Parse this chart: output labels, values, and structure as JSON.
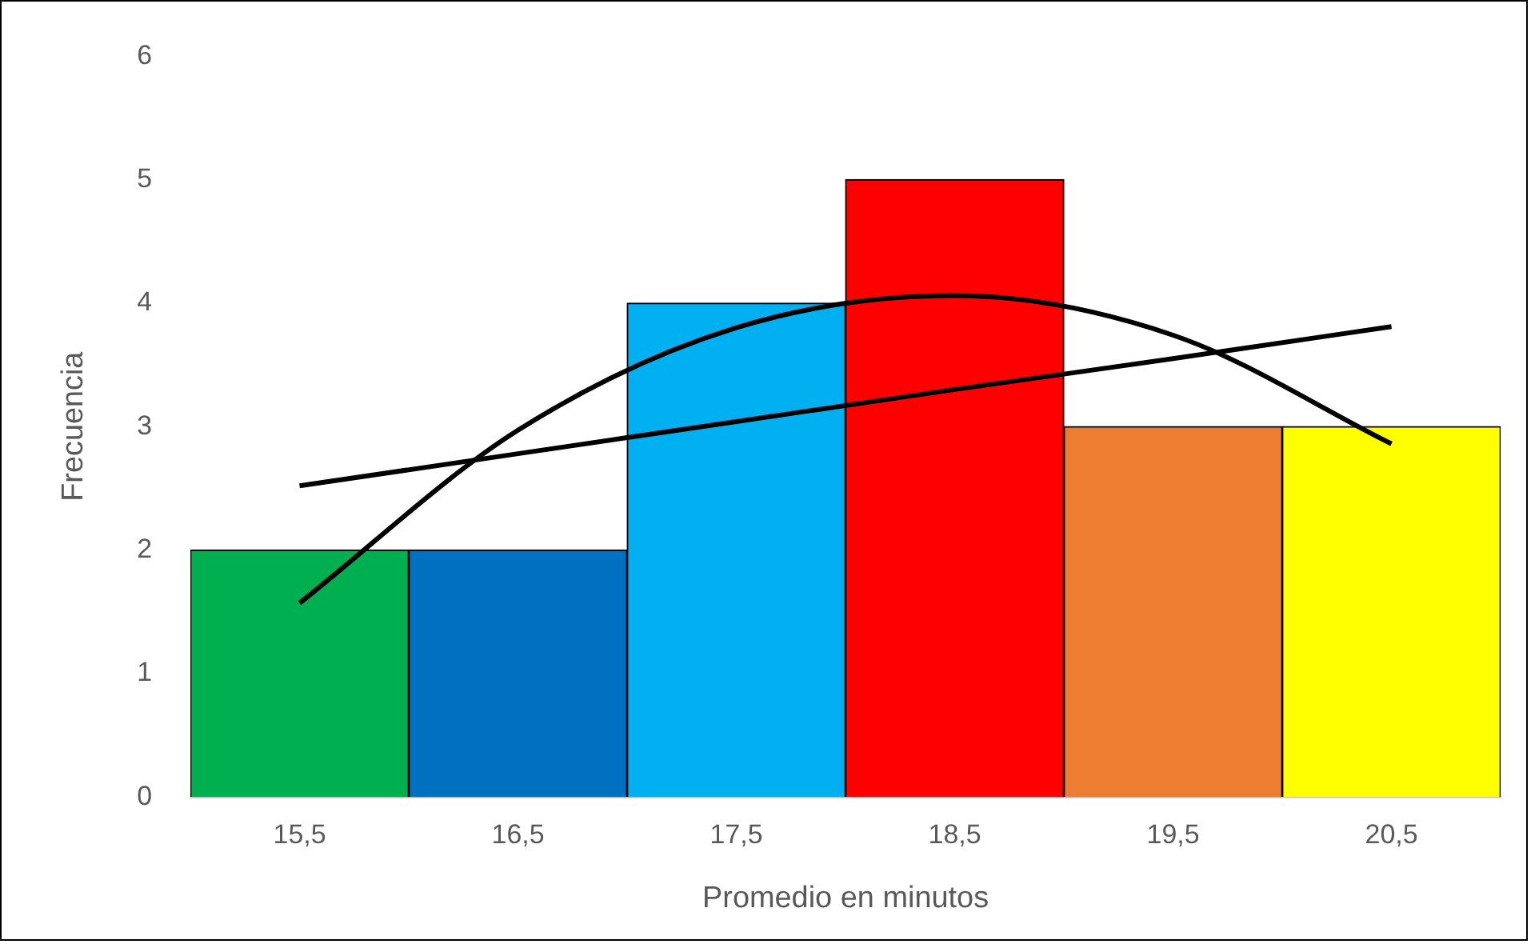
{
  "chart_data": {
    "type": "bar",
    "xlabel": "Promedio en minutos",
    "ylabel": "Frecuencia",
    "categories": [
      "15,5",
      "16,5",
      "17,5",
      "18,5",
      "19,5",
      "20,5"
    ],
    "ylim": [
      0,
      6
    ],
    "yticks": [
      0,
      1,
      2,
      3,
      4,
      5,
      6
    ],
    "grid": false,
    "legend": false,
    "marker": "none",
    "line_style": "solid",
    "series": [
      {
        "values": [
          2,
          2,
          4,
          5,
          3,
          3
        ],
        "colors": [
          "#00b050",
          "#0070c0",
          "#00b0f0",
          "#ff0000",
          "#ed7d31",
          "#ffff00"
        ]
      },
      {
        "type": "line",
        "color": "#000000",
        "values": [
          2.52,
          2.78,
          3.04,
          3.3,
          3.55,
          3.81
        ]
      },
      {
        "type": "line",
        "color": "#000000",
        "values": [
          1.57,
          2.97,
          3.8,
          4.06,
          3.74,
          2.86
        ]
      }
    ]
  }
}
